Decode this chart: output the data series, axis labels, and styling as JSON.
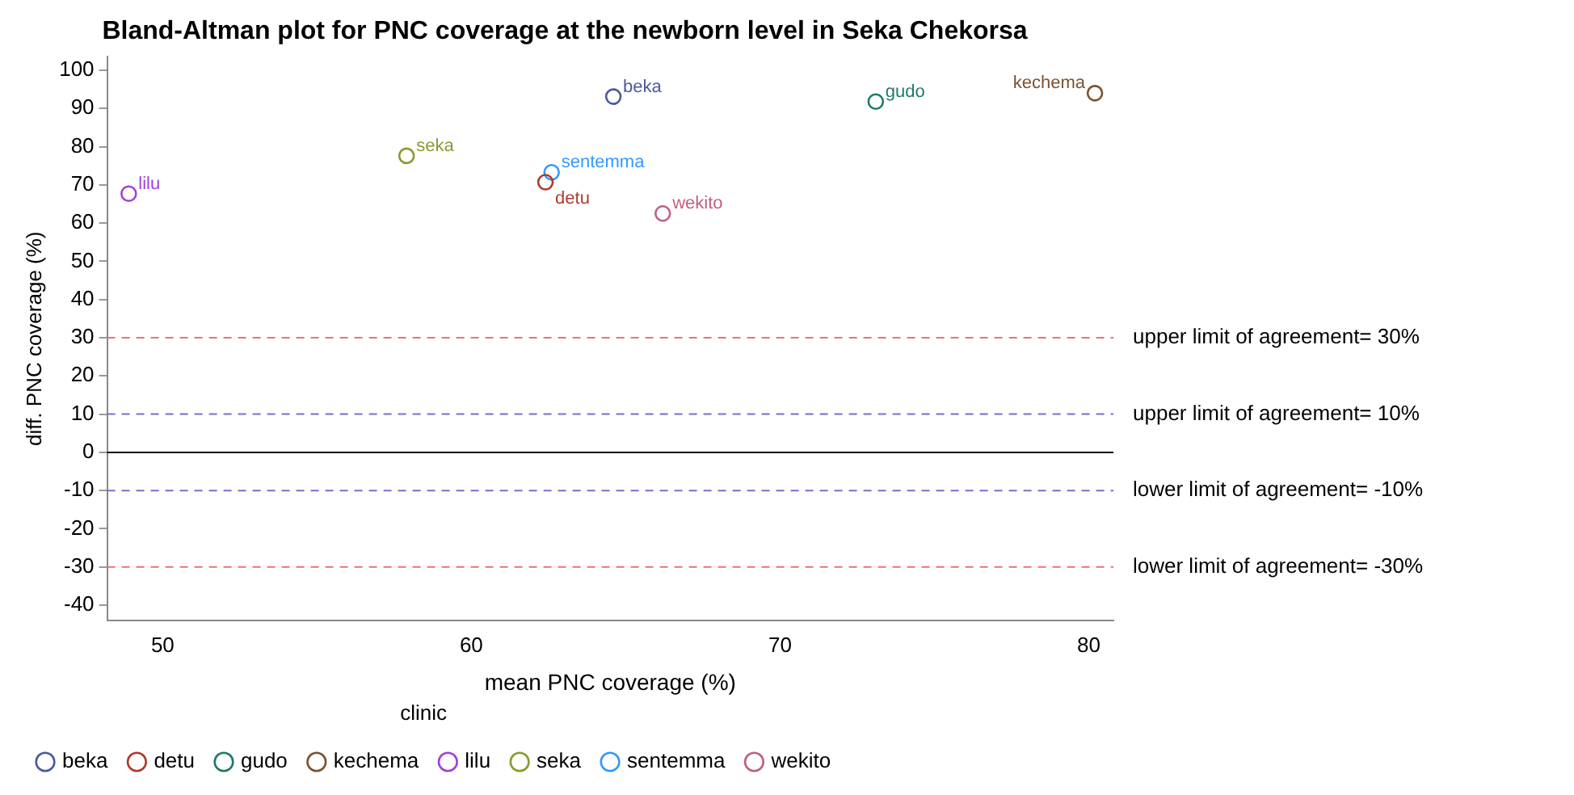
{
  "chart_data": {
    "type": "scatter",
    "title": "Bland-Altman plot for PNC coverage at the newborn level in Seka Chekorsa",
    "xlabel": "mean PNC coverage (%)",
    "ylabel": "diff. PNC coverage (%)",
    "legend_title": "clinic",
    "legend": "bottom",
    "grid": false,
    "marker": "circle",
    "xlim": [
      48.2,
      80.8
    ],
    "xticks": [
      50,
      60,
      70,
      80
    ],
    "ylim": [
      -44,
      103.5
    ],
    "yticks": [
      -40,
      -30,
      -20,
      -10,
      0,
      10,
      20,
      30,
      40,
      50,
      60,
      70,
      80,
      90,
      100
    ],
    "series": [
      {
        "name": "beka",
        "color": "#4a5a9c",
        "x": [
          64.6
        ],
        "values": [
          93.1
        ]
      },
      {
        "name": "detu",
        "color": "#b03a2e",
        "x": [
          62.4
        ],
        "values": [
          70.7
        ]
      },
      {
        "name": "gudo",
        "color": "#1f7a6a",
        "x": [
          73.1
        ],
        "values": [
          91.8
        ]
      },
      {
        "name": "kechema",
        "color": "#7a5230",
        "x": [
          80.2
        ],
        "values": [
          94
        ]
      },
      {
        "name": "lilu",
        "color": "#a040e0",
        "x": [
          48.9
        ],
        "values": [
          67.7
        ]
      },
      {
        "name": "seka",
        "color": "#8a9a30",
        "x": [
          57.9
        ],
        "values": [
          77.6
        ]
      },
      {
        "name": "sentemma",
        "color": "#3399ff",
        "x": [
          62.6
        ],
        "values": [
          73.3
        ]
      },
      {
        "name": "wekito",
        "color": "#c06080",
        "x": [
          66.2
        ],
        "values": [
          62.5
        ]
      }
    ],
    "ref_lines": [
      {
        "axis": "y",
        "value": 30,
        "label": "upper limit of agreement= 30%",
        "color": "#f07070",
        "line_style": "dashed"
      },
      {
        "axis": "y",
        "value": 10,
        "label": "upper limit of agreement= 10%",
        "color": "#7070d0",
        "line_style": "dashed"
      },
      {
        "axis": "y",
        "value": 0,
        "color": "#000000",
        "line_style": "solid"
      },
      {
        "axis": "y",
        "value": -10,
        "label": "lower limit of agreement= -10%",
        "color": "#7070d0",
        "line_style": "dashed"
      },
      {
        "axis": "y",
        "value": -30,
        "label": "lower limit of agreement= -30%",
        "color": "#f07070",
        "line_style": "dashed"
      }
    ]
  }
}
